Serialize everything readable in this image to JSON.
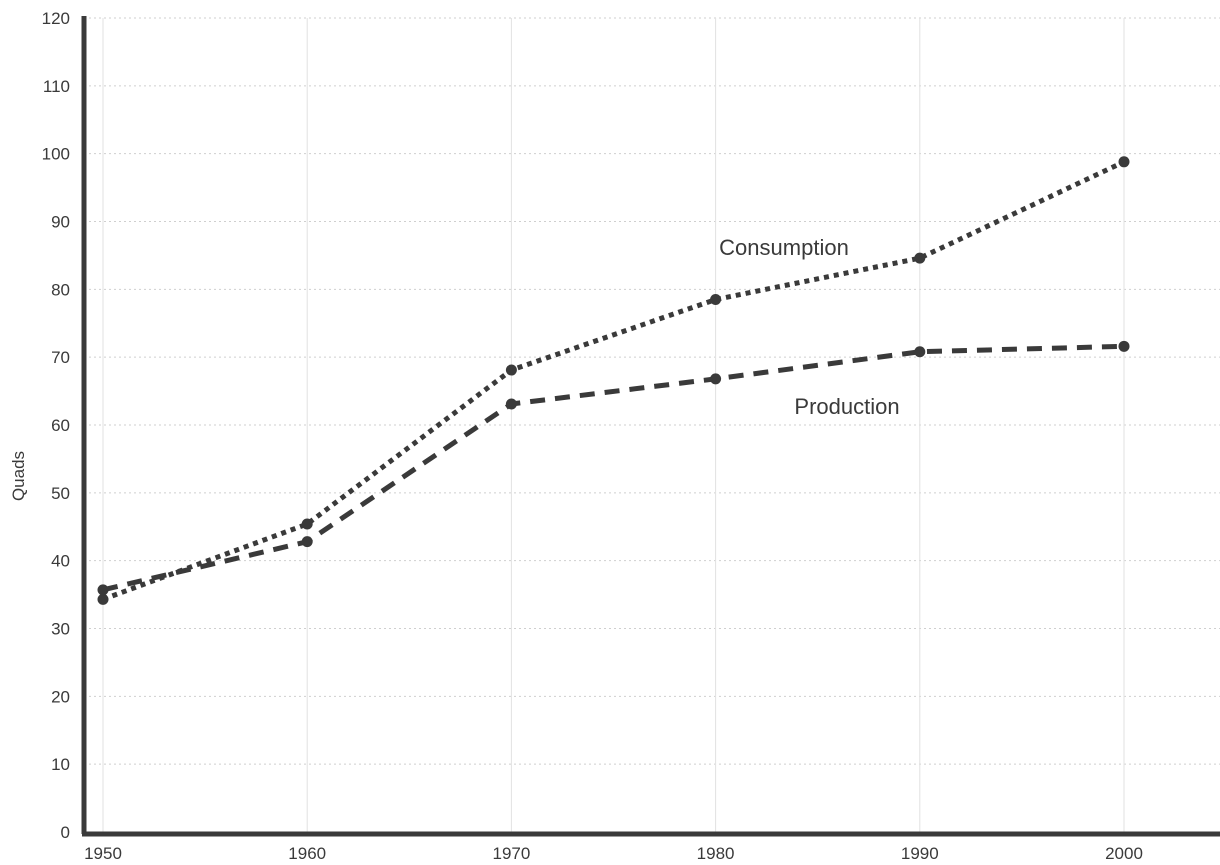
{
  "chart_data": {
    "type": "line",
    "title": "",
    "xlabel": "",
    "ylabel": "Quads",
    "x": [
      1950,
      1960,
      1970,
      1980,
      1990,
      2000
    ],
    "x_ticks": [
      1950,
      1960,
      1970,
      1980,
      1990,
      2000
    ],
    "y_ticks": [
      0,
      10,
      20,
      30,
      40,
      50,
      60,
      70,
      80,
      90,
      100,
      110,
      120
    ],
    "xlim": [
      1950,
      2000
    ],
    "ylim": [
      0,
      120
    ],
    "grid": true,
    "series": [
      {
        "name": "Consumption",
        "values": [
          34.3,
          45.4,
          68.1,
          78.5,
          84.6,
          98.8
        ],
        "line_style": "dotted",
        "color": "#3a3a3a"
      },
      {
        "name": "Production",
        "values": [
          35.7,
          42.8,
          63.1,
          66.8,
          70.8,
          71.6
        ],
        "line_style": "dashed",
        "color": "#3a3a3a"
      }
    ]
  }
}
